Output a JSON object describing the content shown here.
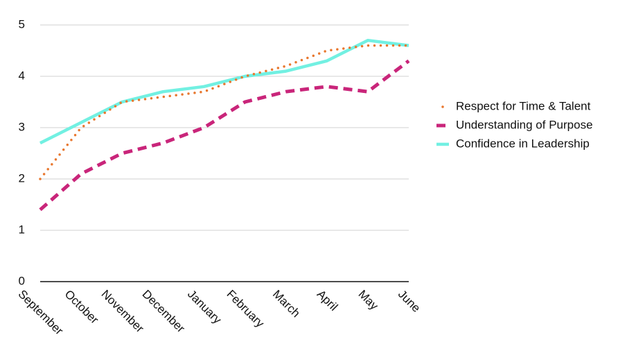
{
  "chart_data": {
    "type": "line",
    "categories": [
      "September",
      "October",
      "November",
      "December",
      "January",
      "February",
      "March",
      "April",
      "May",
      "June"
    ],
    "series": [
      {
        "name": "Respect for Time & Talent",
        "color": "#e8772e",
        "dash": "dotted",
        "values": [
          2.0,
          3.0,
          3.5,
          3.6,
          3.7,
          4.0,
          4.2,
          4.5,
          4.6,
          4.6
        ]
      },
      {
        "name": "Understanding of Purpose",
        "color": "#c9257a",
        "dash": "dashed",
        "values": [
          1.4,
          2.1,
          2.5,
          2.7,
          3.0,
          3.5,
          3.7,
          3.8,
          3.7,
          4.3
        ]
      },
      {
        "name": "Confidence in Leadership",
        "color": "#72f0e2",
        "dash": "solid",
        "values": [
          2.7,
          3.1,
          3.5,
          3.7,
          3.8,
          4.0,
          4.1,
          4.3,
          4.7,
          4.6
        ]
      }
    ],
    "ylim": [
      0,
      5
    ],
    "yticks": [
      0,
      1,
      2,
      3,
      4,
      5
    ],
    "grid": true,
    "legend": "right"
  }
}
